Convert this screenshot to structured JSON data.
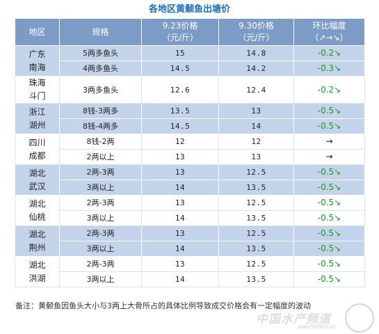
{
  "title": "各地区黄颡鱼出塘价",
  "headers": {
    "region": "地区",
    "spec": "规格",
    "price1_line1": "9.23价格",
    "price1_line2": "（元/斤）",
    "price2_line1": "9.30价格",
    "price2_line2": "（元/斤）",
    "change_line1": "环比幅度",
    "change_line2": "（↗→↘）"
  },
  "colors": {
    "header_bg": "#7d9bc7",
    "band_bg": "#c3d3ea",
    "down_green": "#1a9a2a",
    "title_blue": "#1f6fb5"
  },
  "groups": [
    {
      "region1": "广东",
      "region2": "南海",
      "rows": [
        {
          "spec": "5两多鱼头",
          "p1": "15",
          "p2": "14.8",
          "chg": "-0.2↘"
        },
        {
          "spec": "4两多鱼头",
          "p1": "14.5",
          "p2": "14.2",
          "chg": "-0.3↘"
        }
      ]
    },
    {
      "region1": "珠海",
      "region2": "斗门",
      "rows": [
        {
          "spec": "3两多鱼头",
          "p1": "12.6",
          "p2": "12.4",
          "chg": "-0.2↘"
        }
      ]
    },
    {
      "region1": "浙江",
      "region2": "湖州",
      "rows": [
        {
          "spec": "8钱-3两多",
          "p1": "13.5",
          "p2": "13",
          "chg": "-0.5↘"
        },
        {
          "spec": "8钱-4两多",
          "p1": "14.5",
          "p2": "14",
          "chg": "-0.5↘"
        }
      ]
    },
    {
      "region1": "四川",
      "region2": "成都",
      "rows": [
        {
          "spec": "8钱-2两",
          "p1": "12",
          "p2": "12",
          "chg": "→"
        },
        {
          "spec": "2两以上",
          "p1": "13",
          "p2": "13",
          "chg": "→"
        }
      ]
    },
    {
      "region1": "湖北",
      "region2": "武汉",
      "rows": [
        {
          "spec": "2两-3两",
          "p1": "13",
          "p2": "12.5",
          "chg": "-0.5↘"
        },
        {
          "spec": "3两以上",
          "p1": "14",
          "p2": "13.5",
          "chg": "-0.5↘"
        }
      ]
    },
    {
      "region1": "湖北",
      "region2": "仙桃",
      "rows": [
        {
          "spec": "2两-3两",
          "p1": "13",
          "p2": "12.5",
          "chg": "-0.5↘"
        },
        {
          "spec": "3两以上",
          "p1": "14",
          "p2": "13.5",
          "chg": "-0.5↘"
        }
      ]
    },
    {
      "region1": "湖北",
      "region2": "荆州",
      "rows": [
        {
          "spec": "2两-3两",
          "p1": "13",
          "p2": "12.5",
          "chg": "-0.5↘"
        },
        {
          "spec": "3两以上",
          "p1": "14",
          "p2": "13.5",
          "chg": "-0.5↘"
        }
      ]
    },
    {
      "region1": "湖北",
      "region2": "洪湖",
      "rows": [
        {
          "spec": "2两-3两",
          "p1": "13",
          "p2": "12.5",
          "chg": "-0.5↘"
        },
        {
          "spec": "3两以上",
          "p1": "14",
          "p2": "13.5",
          "chg": "-0.5↘"
        }
      ]
    }
  ],
  "note": "备注：黄颡鱼因鱼头大小与3两上大骨所占的具体比例导致成交价格会有一定幅度的波动",
  "watermark": {
    "text": "中国水产频道",
    "url": "www.fishfirst.cn"
  }
}
